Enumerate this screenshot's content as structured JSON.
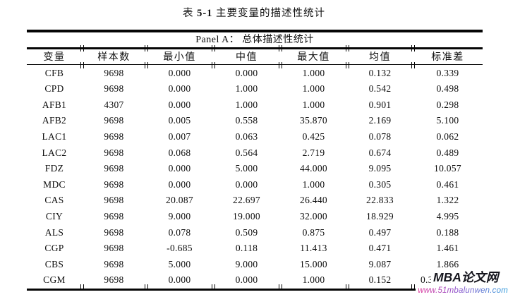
{
  "title": {
    "prefix": "表",
    "number": "5-1",
    "text": "主要变量的描述性统计"
  },
  "panel": {
    "label": "Panel A： 总体描述性统计"
  },
  "table": {
    "columns": [
      "变量",
      "样本数",
      "最小值",
      "中值",
      "最大值",
      "均值",
      "标准差"
    ],
    "rows": [
      [
        "CFB",
        "9698",
        "0.000",
        "0.000",
        "1.000",
        "0.132",
        "0.339"
      ],
      [
        "CPD",
        "9698",
        "0.000",
        "1.000",
        "1.000",
        "0.542",
        "0.498"
      ],
      [
        "AFB1",
        "4307",
        "0.000",
        "1.000",
        "1.000",
        "0.901",
        "0.298"
      ],
      [
        "AFB2",
        "9698",
        "0.005",
        "0.558",
        "35.870",
        "2.169",
        "5.100"
      ],
      [
        "LAC1",
        "9698",
        "0.007",
        "0.063",
        "0.425",
        "0.078",
        "0.062"
      ],
      [
        "LAC2",
        "9698",
        "0.068",
        "0.564",
        "2.719",
        "0.674",
        "0.489"
      ],
      [
        "FDZ",
        "9698",
        "0.000",
        "5.000",
        "44.000",
        "9.095",
        "10.057"
      ],
      [
        "MDC",
        "9698",
        "0.000",
        "0.000",
        "1.000",
        "0.305",
        "0.461"
      ],
      [
        "CAS",
        "9698",
        "20.087",
        "22.697",
        "26.440",
        "22.833",
        "1.322"
      ],
      [
        "CIY",
        "9698",
        "9.000",
        "19.000",
        "32.000",
        "18.929",
        "4.995"
      ],
      [
        "ALS",
        "9698",
        "0.078",
        "0.509",
        "0.875",
        "0.497",
        "0.188"
      ],
      [
        "CGP",
        "9698",
        "-0.685",
        "0.118",
        "11.413",
        "0.471",
        "1.461"
      ],
      [
        "CBS",
        "9698",
        "5.000",
        "9.000",
        "15.000",
        "9.087",
        "1.866"
      ],
      [
        "CGM",
        "9698",
        "0.000",
        "0.000",
        "1.000",
        "0.152",
        "0.3"
      ]
    ]
  },
  "watermark": {
    "name": "MBA论文网",
    "url": "www.51mbalunwen.com",
    "gradient_colors": [
      "#e0389c",
      "#8a52cc",
      "#2f9fdc"
    ]
  }
}
